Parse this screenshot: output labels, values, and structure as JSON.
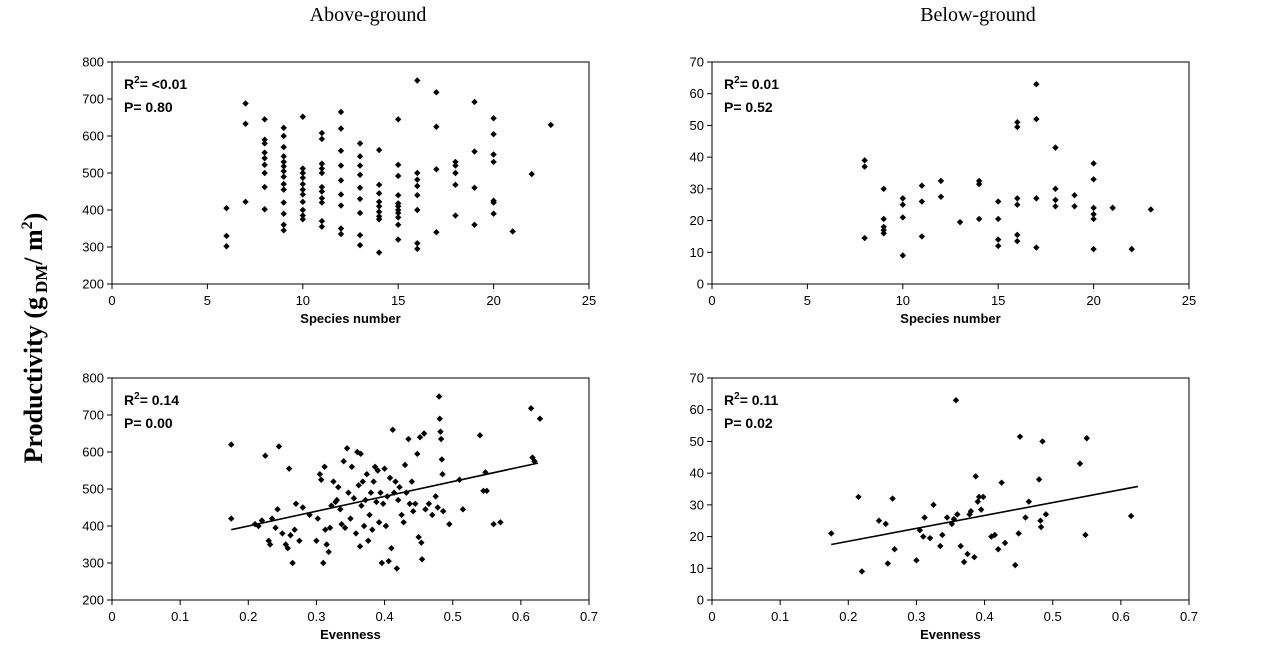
{
  "titles": {
    "left": "Above-ground",
    "right": "Below-ground"
  },
  "ylabel": {
    "main": "Productivity (g",
    "sub": "DM",
    "mid": "/ m",
    "sup": "2",
    "end": ")"
  },
  "chart_data": [
    {
      "type": "scatter",
      "id": "above-species",
      "xlabel": "Species number",
      "xlim": [
        0,
        25
      ],
      "xticks": [
        0,
        5,
        10,
        15,
        20,
        25
      ],
      "ylim": [
        200,
        800
      ],
      "yticks": [
        200,
        300,
        400,
        500,
        600,
        700,
        800
      ],
      "stats": {
        "r2_prefix": "R",
        "r2_sup": "2",
        "r2_value": "= <0.01",
        "p": "P= 0.80"
      },
      "trendline": null,
      "points": [
        [
          6,
          405
        ],
        [
          6,
          330
        ],
        [
          6,
          302
        ],
        [
          7,
          688
        ],
        [
          7,
          633
        ],
        [
          7,
          422
        ],
        [
          8,
          645
        ],
        [
          8,
          590
        ],
        [
          8,
          580
        ],
        [
          8,
          555
        ],
        [
          8,
          540
        ],
        [
          8,
          522
        ],
        [
          8,
          500
        ],
        [
          8,
          462
        ],
        [
          8,
          402
        ],
        [
          9,
          622
        ],
        [
          9,
          600
        ],
        [
          9,
          570
        ],
        [
          9,
          545
        ],
        [
          9,
          530
        ],
        [
          9,
          518
        ],
        [
          9,
          505
        ],
        [
          9,
          490
        ],
        [
          9,
          470
        ],
        [
          9,
          455
        ],
        [
          9,
          420
        ],
        [
          9,
          390
        ],
        [
          9,
          360
        ],
        [
          9,
          345
        ],
        [
          10,
          652
        ],
        [
          10,
          512
        ],
        [
          10,
          500
        ],
        [
          10,
          487
        ],
        [
          10,
          470
        ],
        [
          10,
          455
        ],
        [
          10,
          442
        ],
        [
          10,
          422
        ],
        [
          10,
          400
        ],
        [
          10,
          385
        ],
        [
          10,
          375
        ],
        [
          11,
          608
        ],
        [
          11,
          592
        ],
        [
          11,
          525
        ],
        [
          11,
          512
        ],
        [
          11,
          500
        ],
        [
          11,
          462
        ],
        [
          11,
          450
        ],
        [
          11,
          432
        ],
        [
          11,
          420
        ],
        [
          11,
          370
        ],
        [
          11,
          355
        ],
        [
          12,
          665
        ],
        [
          12,
          620
        ],
        [
          12,
          560
        ],
        [
          12,
          520
        ],
        [
          12,
          480
        ],
        [
          12,
          442
        ],
        [
          12,
          412
        ],
        [
          12,
          350
        ],
        [
          12,
          335
        ],
        [
          13,
          580
        ],
        [
          13,
          545
        ],
        [
          13,
          520
        ],
        [
          13,
          495
        ],
        [
          13,
          460
        ],
        [
          13,
          430
        ],
        [
          13,
          392
        ],
        [
          13,
          332
        ],
        [
          13,
          305
        ],
        [
          14,
          562
        ],
        [
          14,
          468
        ],
        [
          14,
          445
        ],
        [
          14,
          422
        ],
        [
          14,
          410
        ],
        [
          14,
          395
        ],
        [
          14,
          383
        ],
        [
          14,
          375
        ],
        [
          14,
          285
        ],
        [
          15,
          645
        ],
        [
          15,
          522
        ],
        [
          15,
          492
        ],
        [
          15,
          440
        ],
        [
          15,
          418
        ],
        [
          15,
          410
        ],
        [
          15,
          400
        ],
        [
          15,
          392
        ],
        [
          15,
          380
        ],
        [
          15,
          360
        ],
        [
          15,
          320
        ],
        [
          16,
          750
        ],
        [
          16,
          500
        ],
        [
          16,
          482
        ],
        [
          16,
          465
        ],
        [
          16,
          440
        ],
        [
          16,
          400
        ],
        [
          16,
          310
        ],
        [
          16,
          295
        ],
        [
          17,
          718
        ],
        [
          17,
          625
        ],
        [
          17,
          510
        ],
        [
          17,
          340
        ],
        [
          18,
          530
        ],
        [
          18,
          520
        ],
        [
          18,
          500
        ],
        [
          18,
          468
        ],
        [
          18,
          385
        ],
        [
          19,
          692
        ],
        [
          19,
          558
        ],
        [
          19,
          460
        ],
        [
          19,
          360
        ],
        [
          20,
          648
        ],
        [
          20,
          605
        ],
        [
          20,
          550
        ],
        [
          20,
          530
        ],
        [
          20,
          425
        ],
        [
          20,
          420
        ],
        [
          20,
          390
        ],
        [
          21,
          342
        ],
        [
          22,
          497
        ],
        [
          23,
          630
        ]
      ]
    },
    {
      "type": "scatter",
      "id": "below-species",
      "xlabel": "Species number",
      "xlim": [
        0,
        25
      ],
      "xticks": [
        0,
        5,
        10,
        15,
        20,
        25
      ],
      "ylim": [
        0,
        70
      ],
      "yticks": [
        0,
        10,
        20,
        30,
        40,
        50,
        60,
        70
      ],
      "stats": {
        "r2_prefix": "R",
        "r2_sup": "2",
        "r2_value": "= 0.01",
        "p": "P= 0.52"
      },
      "trendline": null,
      "points": [
        [
          8,
          39
        ],
        [
          8,
          37
        ],
        [
          8,
          14.5
        ],
        [
          9,
          30
        ],
        [
          9,
          20.5
        ],
        [
          9,
          18
        ],
        [
          9,
          17
        ],
        [
          9,
          16
        ],
        [
          10,
          27
        ],
        [
          10,
          25
        ],
        [
          10,
          21
        ],
        [
          10,
          9
        ],
        [
          11,
          31
        ],
        [
          11,
          26
        ],
        [
          11,
          15
        ],
        [
          12,
          32.5
        ],
        [
          12,
          27.5
        ],
        [
          13,
          19.5
        ],
        [
          14,
          32.5
        ],
        [
          14,
          31.5
        ],
        [
          14,
          20.5
        ],
        [
          15,
          26
        ],
        [
          15,
          20.5
        ],
        [
          15,
          14
        ],
        [
          15,
          12
        ],
        [
          16,
          51
        ],
        [
          16,
          49.5
        ],
        [
          16,
          27
        ],
        [
          16,
          25
        ],
        [
          16,
          15.5
        ],
        [
          16,
          13.5
        ],
        [
          17,
          63
        ],
        [
          17,
          52
        ],
        [
          17,
          27
        ],
        [
          17,
          11.5
        ],
        [
          18,
          43
        ],
        [
          18,
          30
        ],
        [
          18,
          26.5
        ],
        [
          18,
          24.5
        ],
        [
          19,
          28
        ],
        [
          19,
          24.5
        ],
        [
          20,
          38
        ],
        [
          20,
          33
        ],
        [
          20,
          24
        ],
        [
          20,
          22
        ],
        [
          20,
          20.5
        ],
        [
          20,
          11
        ],
        [
          21,
          24
        ],
        [
          22,
          11
        ],
        [
          23,
          23.5
        ]
      ]
    },
    {
      "type": "scatter",
      "id": "above-evenness",
      "xlabel": "Evenness",
      "xlim": [
        0,
        0.7
      ],
      "xticks": [
        0,
        0.1,
        0.2,
        0.3,
        0.4,
        0.5,
        0.6,
        0.7
      ],
      "ylim": [
        200,
        800
      ],
      "yticks": [
        200,
        300,
        400,
        500,
        600,
        700,
        800
      ],
      "stats": {
        "r2_prefix": "R",
        "r2_sup": "2",
        "r2_value": "= 0.14",
        "p": "P= 0.00"
      },
      "trendline": [
        [
          0.175,
          390
        ],
        [
          0.625,
          570
        ]
      ],
      "points": [
        [
          0.175,
          620
        ],
        [
          0.175,
          420
        ],
        [
          0.21,
          405
        ],
        [
          0.215,
          400
        ],
        [
          0.22,
          415
        ],
        [
          0.225,
          590
        ],
        [
          0.23,
          360
        ],
        [
          0.232,
          350
        ],
        [
          0.235,
          420
        ],
        [
          0.24,
          395
        ],
        [
          0.243,
          445
        ],
        [
          0.245,
          615
        ],
        [
          0.25,
          380
        ],
        [
          0.255,
          350
        ],
        [
          0.258,
          340
        ],
        [
          0.26,
          555
        ],
        [
          0.262,
          375
        ],
        [
          0.265,
          300
        ],
        [
          0.268,
          390
        ],
        [
          0.27,
          460
        ],
        [
          0.275,
          360
        ],
        [
          0.28,
          450
        ],
        [
          0.29,
          430
        ],
        [
          0.3,
          360
        ],
        [
          0.302,
          420
        ],
        [
          0.305,
          540
        ],
        [
          0.307,
          525
        ],
        [
          0.31,
          300
        ],
        [
          0.312,
          560
        ],
        [
          0.313,
          390
        ],
        [
          0.315,
          350
        ],
        [
          0.318,
          330
        ],
        [
          0.32,
          395
        ],
        [
          0.322,
          455
        ],
        [
          0.325,
          520
        ],
        [
          0.328,
          465
        ],
        [
          0.33,
          470
        ],
        [
          0.332,
          505
        ],
        [
          0.335,
          445
        ],
        [
          0.337,
          405
        ],
        [
          0.34,
          575
        ],
        [
          0.342,
          395
        ],
        [
          0.345,
          610
        ],
        [
          0.347,
          490
        ],
        [
          0.35,
          420
        ],
        [
          0.352,
          560
        ],
        [
          0.355,
          475
        ],
        [
          0.358,
          380
        ],
        [
          0.36,
          600
        ],
        [
          0.362,
          510
        ],
        [
          0.364,
          345
        ],
        [
          0.365,
          595
        ],
        [
          0.366,
          455
        ],
        [
          0.368,
          520
        ],
        [
          0.37,
          400
        ],
        [
          0.372,
          470
        ],
        [
          0.374,
          540
        ],
        [
          0.376,
          360
        ],
        [
          0.378,
          430
        ],
        [
          0.38,
          490
        ],
        [
          0.382,
          390
        ],
        [
          0.384,
          520
        ],
        [
          0.386,
          560
        ],
        [
          0.388,
          465
        ],
        [
          0.39,
          550
        ],
        [
          0.392,
          410
        ],
        [
          0.394,
          490
        ],
        [
          0.396,
          300
        ],
        [
          0.398,
          460
        ],
        [
          0.4,
          555
        ],
        [
          0.402,
          400
        ],
        [
          0.404,
          480
        ],
        [
          0.406,
          305
        ],
        [
          0.408,
          530
        ],
        [
          0.41,
          340
        ],
        [
          0.412,
          660
        ],
        [
          0.414,
          490
        ],
        [
          0.416,
          520
        ],
        [
          0.418,
          285
        ],
        [
          0.42,
          470
        ],
        [
          0.422,
          505
        ],
        [
          0.425,
          430
        ],
        [
          0.428,
          410
        ],
        [
          0.43,
          565
        ],
        [
          0.432,
          490
        ],
        [
          0.435,
          635
        ],
        [
          0.437,
          460
        ],
        [
          0.44,
          520
        ],
        [
          0.442,
          440
        ],
        [
          0.445,
          460
        ],
        [
          0.448,
          595
        ],
        [
          0.45,
          370
        ],
        [
          0.452,
          640
        ],
        [
          0.454,
          355
        ],
        [
          0.455,
          310
        ],
        [
          0.458,
          650
        ],
        [
          0.46,
          445
        ],
        [
          0.465,
          460
        ],
        [
          0.47,
          430
        ],
        [
          0.475,
          480
        ],
        [
          0.478,
          450
        ],
        [
          0.48,
          750
        ],
        [
          0.481,
          690
        ],
        [
          0.482,
          655
        ],
        [
          0.483,
          635
        ],
        [
          0.484,
          580
        ],
        [
          0.485,
          540
        ],
        [
          0.486,
          440
        ],
        [
          0.495,
          405
        ],
        [
          0.51,
          525
        ],
        [
          0.515,
          445
        ],
        [
          0.54,
          645
        ],
        [
          0.545,
          495
        ],
        [
          0.548,
          545
        ],
        [
          0.55,
          495
        ],
        [
          0.56,
          405
        ],
        [
          0.57,
          410
        ],
        [
          0.615,
          718
        ],
        [
          0.617,
          585
        ],
        [
          0.62,
          575
        ],
        [
          0.628,
          690
        ]
      ]
    },
    {
      "type": "scatter",
      "id": "below-evenness",
      "xlabel": "Evenness",
      "xlim": [
        0,
        0.7
      ],
      "xticks": [
        0,
        0.1,
        0.2,
        0.3,
        0.4,
        0.5,
        0.6,
        0.7
      ],
      "ylim": [
        0,
        70
      ],
      "yticks": [
        0,
        10,
        20,
        30,
        40,
        50,
        60,
        70
      ],
      "stats": {
        "r2_prefix": "R",
        "r2_sup": "2",
        "r2_value": "= 0.11",
        "p": "P= 0.02"
      },
      "trendline": [
        [
          0.175,
          17.5
        ],
        [
          0.625,
          35.8
        ]
      ],
      "points": [
        [
          0.175,
          21
        ],
        [
          0.215,
          32.5
        ],
        [
          0.22,
          9
        ],
        [
          0.245,
          25
        ],
        [
          0.255,
          24
        ],
        [
          0.258,
          11.5
        ],
        [
          0.265,
          32
        ],
        [
          0.268,
          16
        ],
        [
          0.3,
          12.5
        ],
        [
          0.305,
          22
        ],
        [
          0.31,
          20
        ],
        [
          0.312,
          26
        ],
        [
          0.32,
          19.5
        ],
        [
          0.325,
          30
        ],
        [
          0.335,
          17
        ],
        [
          0.338,
          20.5
        ],
        [
          0.345,
          26
        ],
        [
          0.352,
          24
        ],
        [
          0.355,
          25.5
        ],
        [
          0.358,
          63
        ],
        [
          0.36,
          27
        ],
        [
          0.365,
          17
        ],
        [
          0.37,
          12
        ],
        [
          0.375,
          14.5
        ],
        [
          0.378,
          27
        ],
        [
          0.38,
          28
        ],
        [
          0.385,
          13.5
        ],
        [
          0.387,
          39
        ],
        [
          0.39,
          31
        ],
        [
          0.392,
          32.5
        ],
        [
          0.395,
          28.5
        ],
        [
          0.398,
          32.5
        ],
        [
          0.41,
          20
        ],
        [
          0.415,
          20.5
        ],
        [
          0.42,
          16
        ],
        [
          0.425,
          37
        ],
        [
          0.43,
          18
        ],
        [
          0.445,
          11
        ],
        [
          0.45,
          21
        ],
        [
          0.452,
          51.5
        ],
        [
          0.46,
          26
        ],
        [
          0.465,
          31
        ],
        [
          0.48,
          38
        ],
        [
          0.482,
          25
        ],
        [
          0.483,
          23
        ],
        [
          0.485,
          50
        ],
        [
          0.49,
          27
        ],
        [
          0.54,
          43
        ],
        [
          0.548,
          20.5
        ],
        [
          0.55,
          51
        ],
        [
          0.615,
          26.5
        ]
      ]
    }
  ]
}
